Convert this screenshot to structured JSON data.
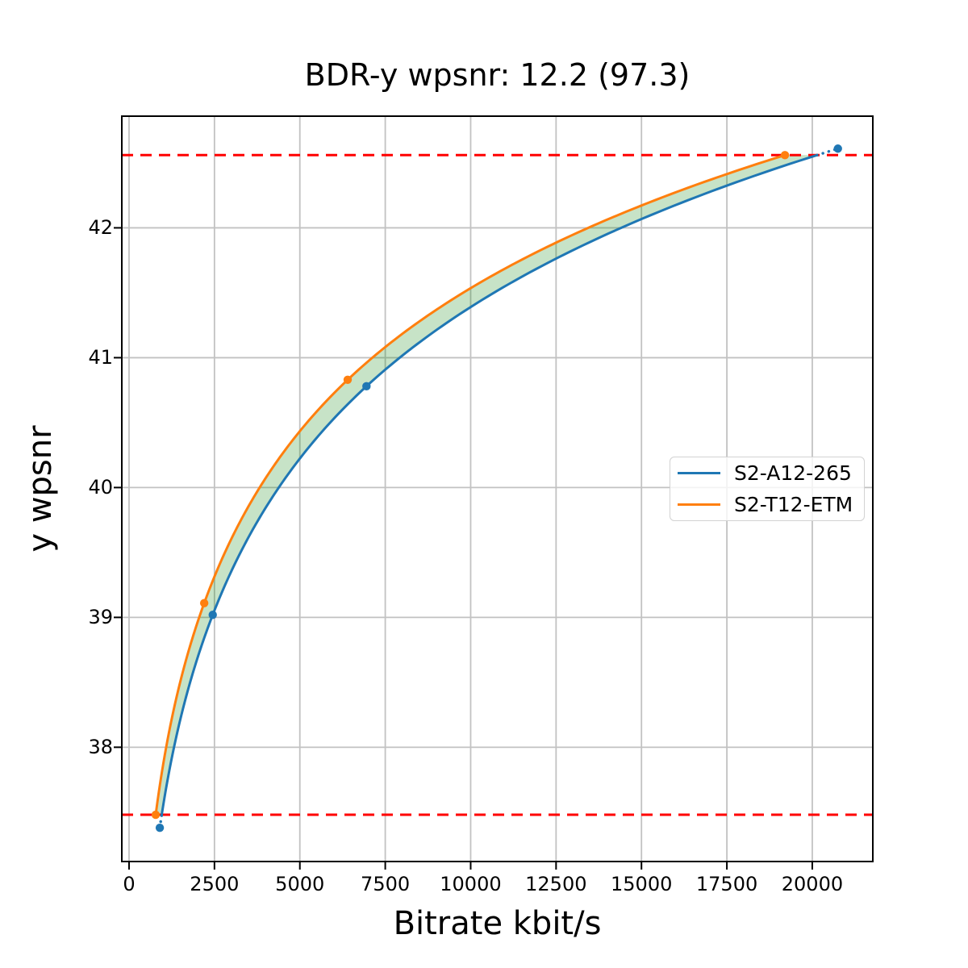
{
  "figure": {
    "background": "#ffffff"
  },
  "chart_data": {
    "type": "line",
    "title": "BDR-y wpsnr: 12.2 (97.3)",
    "xlabel": "Bitrate kbit/s",
    "ylabel": "y wpsnr",
    "xlim": [
      -212,
      21772
    ],
    "ylim": [
      37.12,
      42.86
    ],
    "x_ticks": [
      0,
      2500,
      5000,
      7500,
      10000,
      12500,
      15000,
      17500,
      20000
    ],
    "y_ticks": [
      38,
      39,
      40,
      41,
      42
    ],
    "grid": true,
    "grid_color": "#c2c2c2",
    "axis_color": "#000000",
    "legend_position": "center-right",
    "series": [
      {
        "name": "S2-A12-265",
        "color": "#1f77b4",
        "x": [
          900,
          2450,
          6950,
          20750
        ],
        "y": [
          37.38,
          39.02,
          40.78,
          42.61
        ],
        "marker": "circle",
        "interpolation": "pchip-log"
      },
      {
        "name": "S2-T12-ETM",
        "color": "#ff7f0e",
        "x": [
          780,
          2200,
          6400,
          19200
        ],
        "y": [
          37.48,
          39.11,
          40.83,
          42.56
        ],
        "marker": "circle",
        "interpolation": "pchip-log"
      }
    ],
    "reference_lines": {
      "type": "horizontal",
      "style": "dashed",
      "color": "#ff0000",
      "y_values": [
        37.48,
        42.56
      ]
    },
    "fill_between": {
      "color": "#008000",
      "opacity": 0.22
    },
    "bdr_label": "BDR-y wpsnr",
    "bdr_value": "12.2",
    "bdr_secondary_value": "97.3"
  }
}
